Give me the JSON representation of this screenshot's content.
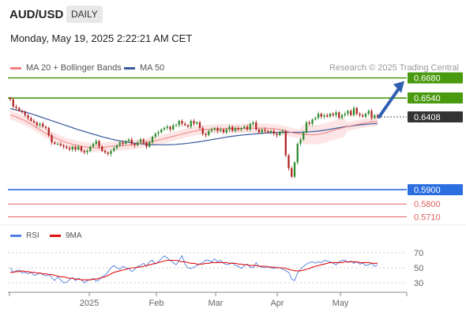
{
  "header": {
    "pair": "AUD/USD",
    "period": "DAILY"
  },
  "timestamp": "Monday, May 19, 2025 2:22:21 AM CET",
  "legend": {
    "ma20": "MA 20 + Bollinger Bands",
    "ma50": "MA 50"
  },
  "credit": "Research © 2025 Trading Central",
  "rsi_legend": {
    "rsi": "RSI",
    "ma": "9MA"
  },
  "colors": {
    "green": "#4a9a10",
    "blue": "#2a6ee0",
    "red": "#e06060",
    "dark": "#333333",
    "ma20": "#f08080",
    "ma50": "#3a5a9a",
    "arrow": "#2f5fb0",
    "band": "#fde0e0",
    "rsi": "#4f7fe0",
    "rsi_ma": "#e01010"
  },
  "chart_data": [
    {
      "type": "candlestick",
      "title": "",
      "ylim": [
        0.568,
        0.67
      ],
      "x_ticks": [
        "2025",
        "Feb",
        "Mar",
        "Apr",
        "May"
      ],
      "levels": [
        {
          "value": 0.668,
          "label": "0.6680",
          "kind": "resistance",
          "color": "green",
          "style": "box"
        },
        {
          "value": 0.654,
          "label": "0.6540",
          "kind": "resistance",
          "color": "green",
          "style": "box"
        },
        {
          "value": 0.6408,
          "label": "0.6408",
          "kind": "last_price",
          "color": "dark",
          "style": "box"
        },
        {
          "value": 0.59,
          "label": "0.5900",
          "kind": "support",
          "color": "blue",
          "style": "box"
        },
        {
          "value": 0.58,
          "label": "0.5800",
          "kind": "support",
          "color": "red",
          "style": "text"
        },
        {
          "value": 0.571,
          "label": "0.5710",
          "kind": "support",
          "color": "red",
          "style": "text"
        }
      ],
      "close": [
        0.653,
        0.648,
        0.647,
        0.645,
        0.644,
        0.642,
        0.64,
        0.638,
        0.637,
        0.635,
        0.636,
        0.634,
        0.633,
        0.628,
        0.623,
        0.622,
        0.622,
        0.621,
        0.62,
        0.619,
        0.618,
        0.62,
        0.618,
        0.62,
        0.617,
        0.616,
        0.617,
        0.62,
        0.622,
        0.624,
        0.62,
        0.617,
        0.616,
        0.615,
        0.617,
        0.619,
        0.621,
        0.623,
        0.622,
        0.624,
        0.625,
        0.622,
        0.621,
        0.623,
        0.625,
        0.623,
        0.62,
        0.623,
        0.627,
        0.629,
        0.63,
        0.632,
        0.633,
        0.634,
        0.632,
        0.635,
        0.635,
        0.638,
        0.636,
        0.635,
        0.634,
        0.638,
        0.636,
        0.637,
        0.633,
        0.629,
        0.628,
        0.631,
        0.632,
        0.633,
        0.631,
        0.632,
        0.63,
        0.632,
        0.634,
        0.631,
        0.633,
        0.632,
        0.633,
        0.634,
        0.632,
        0.636,
        0.637,
        0.632,
        0.63,
        0.632,
        0.631,
        0.63,
        0.631,
        0.629,
        0.628,
        0.63,
        0.631,
        0.614,
        0.605,
        0.599,
        0.609,
        0.622,
        0.625,
        0.63,
        0.637,
        0.636,
        0.639,
        0.64,
        0.643,
        0.641,
        0.642,
        0.641,
        0.643,
        0.642,
        0.644,
        0.64,
        0.642,
        0.643,
        0.645,
        0.642,
        0.647,
        0.643,
        0.642,
        0.641,
        0.643,
        0.645,
        0.64,
        0.642,
        0.6408
      ],
      "ma20": [
        0.642,
        0.6415,
        0.6405,
        0.6395,
        0.6385,
        0.6372,
        0.636,
        0.6345,
        0.633,
        0.6315,
        0.63,
        0.6287,
        0.6275,
        0.6265,
        0.6255,
        0.6245,
        0.6235,
        0.6227,
        0.622,
        0.6214,
        0.6208,
        0.6203,
        0.6199,
        0.6196,
        0.6194,
        0.6193,
        0.6193,
        0.6195,
        0.6197,
        0.62,
        0.6203,
        0.6205,
        0.6206,
        0.6207,
        0.6208,
        0.621,
        0.6213,
        0.6216,
        0.622,
        0.6224,
        0.6228,
        0.6232,
        0.6236,
        0.624,
        0.6246,
        0.6252,
        0.6258,
        0.6264,
        0.627,
        0.6276,
        0.6282,
        0.6288,
        0.6294,
        0.63,
        0.6305,
        0.631,
        0.6314,
        0.6317,
        0.632,
        0.6322,
        0.6323,
        0.6324,
        0.6325,
        0.6326,
        0.6327,
        0.6327,
        0.6327,
        0.6327,
        0.6328,
        0.6328,
        0.6328,
        0.6329,
        0.6329,
        0.633,
        0.633,
        0.633,
        0.6329,
        0.6328,
        0.6326,
        0.6323,
        0.6319,
        0.6314,
        0.6308,
        0.6302,
        0.6297,
        0.6293,
        0.6289,
        0.6286,
        0.6284,
        0.6283,
        0.6283,
        0.6285,
        0.6289,
        0.6294,
        0.63,
        0.6307,
        0.6314,
        0.6321,
        0.6328,
        0.6334,
        0.634,
        0.6345,
        0.635,
        0.6355,
        0.636,
        0.6364,
        0.6368,
        0.6372,
        0.6375,
        0.6378
      ],
      "ma50": [
        0.6465,
        0.646,
        0.6455,
        0.645,
        0.6445,
        0.6438,
        0.6431,
        0.6424,
        0.6416,
        0.6408,
        0.64,
        0.6392,
        0.6384,
        0.6376,
        0.6368,
        0.636,
        0.6352,
        0.6344,
        0.6336,
        0.6328,
        0.632,
        0.6313,
        0.6306,
        0.6299,
        0.6292,
        0.6285,
        0.6278,
        0.6271,
        0.6265,
        0.6259,
        0.6253,
        0.6248,
        0.6243,
        0.6239,
        0.6235,
        0.6231,
        0.6228,
        0.6225,
        0.6222,
        0.622,
        0.6218,
        0.6216,
        0.6215,
        0.6214,
        0.6213,
        0.6213,
        0.6213,
        0.6214,
        0.6215,
        0.6216,
        0.6218,
        0.622,
        0.6222,
        0.6225,
        0.6228,
        0.6231,
        0.6234,
        0.6238,
        0.6242,
        0.6246,
        0.625,
        0.6254,
        0.6258,
        0.6262,
        0.6266,
        0.627,
        0.6273,
        0.6276,
        0.6279,
        0.6282,
        0.6284,
        0.6286,
        0.6288,
        0.629,
        0.6292,
        0.6294,
        0.6296,
        0.6297,
        0.6298,
        0.6299,
        0.63,
        0.63,
        0.63,
        0.63,
        0.63,
        0.63,
        0.6301,
        0.6302,
        0.6303,
        0.6304,
        0.6306,
        0.6308,
        0.6311,
        0.6314,
        0.6318,
        0.6322,
        0.6326,
        0.633,
        0.6334,
        0.6338,
        0.6341,
        0.6344,
        0.6347,
        0.635,
        0.6353,
        0.6355,
        0.6357,
        0.6359,
        0.6361,
        0.6362
      ],
      "forecast": {
        "from": 0.6408,
        "to": 0.668
      }
    },
    {
      "type": "line",
      "title": "",
      "ylim": [
        20,
        80
      ],
      "y_ticks": [
        70,
        50,
        30
      ],
      "series": [
        {
          "name": "RSI",
          "values": [
            50,
            44,
            46,
            47,
            43,
            44,
            42,
            44,
            40,
            41,
            43,
            41,
            39,
            41,
            37,
            33,
            38,
            34,
            30,
            31,
            34,
            37,
            33,
            36,
            34,
            30,
            33,
            34,
            36,
            32,
            34,
            38,
            40,
            45,
            50,
            53,
            50,
            48,
            52,
            50,
            49,
            45,
            48,
            52,
            53,
            56,
            52,
            58,
            60,
            55,
            58,
            62,
            66,
            63,
            60,
            57,
            54,
            60,
            66,
            55,
            50,
            49,
            51,
            53,
            55,
            57,
            60,
            60,
            58,
            62,
            58,
            60,
            56,
            54,
            55,
            57,
            53,
            52,
            49,
            53,
            55,
            51,
            50,
            57,
            52,
            51,
            50,
            52,
            50,
            49,
            51,
            50,
            48,
            46,
            44,
            35,
            33,
            43,
            48,
            52,
            55,
            57,
            58,
            56,
            58,
            57,
            60,
            59,
            58,
            56,
            54,
            58,
            60,
            60,
            57,
            59,
            56,
            58,
            55,
            56,
            53,
            54,
            56,
            52,
            54
          ]
        },
        {
          "name": "9MA",
          "values": [
            44,
            44,
            45,
            45,
            46,
            45,
            45,
            44,
            44,
            43,
            43,
            42,
            42,
            41,
            41,
            40,
            39,
            38,
            38,
            37,
            36,
            36,
            35,
            35,
            34,
            34,
            34,
            34,
            35,
            35,
            36,
            37,
            38,
            40,
            42,
            44,
            45,
            46,
            47,
            48,
            49,
            50,
            50,
            51,
            51,
            52,
            53,
            54,
            55,
            56,
            57,
            58,
            59,
            60,
            60,
            60,
            60,
            59,
            58,
            58,
            57,
            56,
            56,
            55,
            55,
            55,
            56,
            56,
            57,
            57,
            57,
            57,
            57,
            57,
            56,
            56,
            56,
            55,
            55,
            54,
            54,
            53,
            53,
            53,
            52,
            52,
            52,
            51,
            51,
            51,
            50,
            50,
            50,
            49,
            48,
            47,
            46,
            46,
            46,
            47,
            48,
            49,
            51,
            52,
            53,
            54,
            55,
            56,
            57,
            57,
            57,
            57,
            57,
            58,
            58,
            58,
            58,
            58,
            57,
            57,
            57,
            57,
            56,
            56,
            56
          ]
        }
      ]
    }
  ]
}
